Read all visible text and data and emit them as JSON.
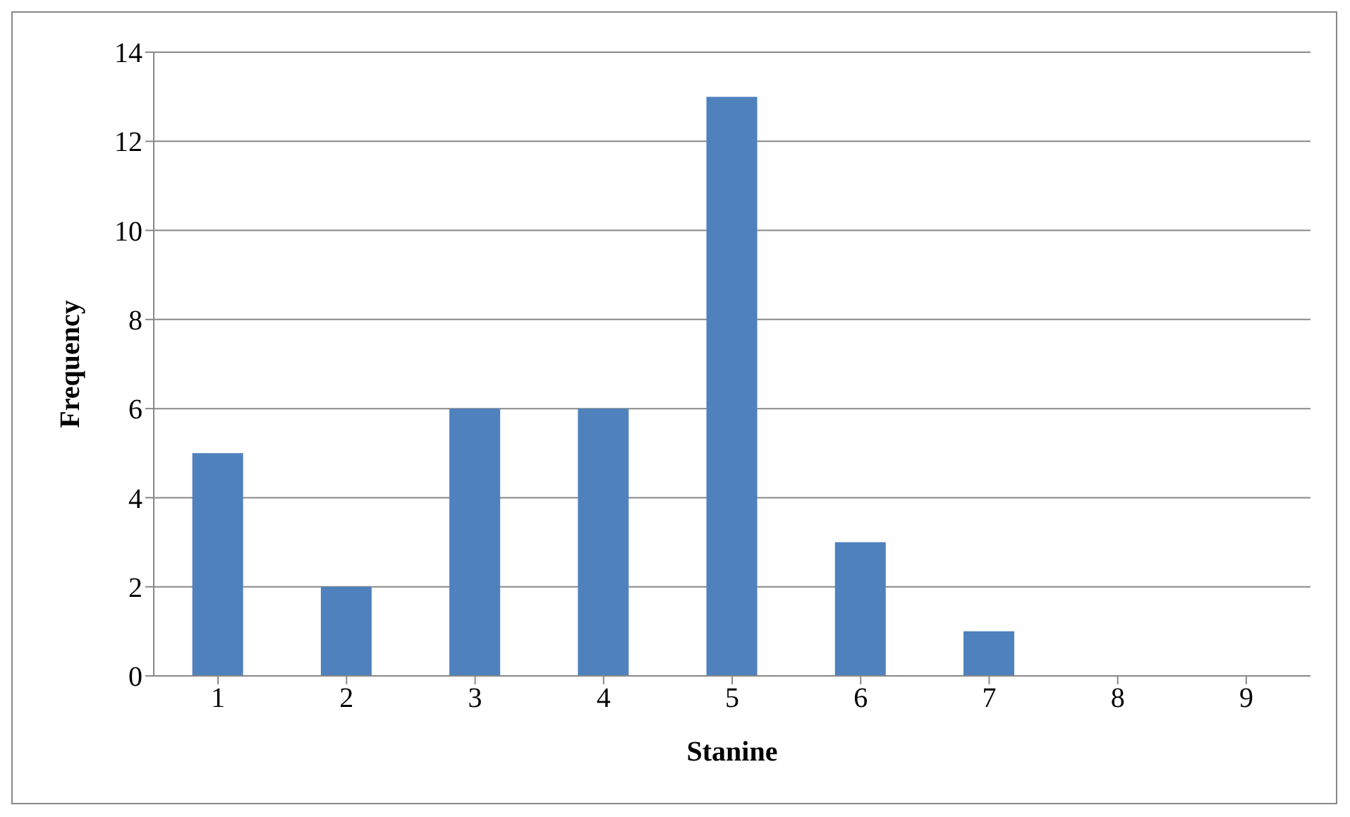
{
  "chart_data": {
    "type": "bar",
    "xlabel": "Stanine",
    "ylabel": "Frequency",
    "categories": [
      "1",
      "2",
      "3",
      "4",
      "5",
      "6",
      "7",
      "8",
      "9"
    ],
    "values": [
      5,
      2,
      6,
      6,
      13,
      3,
      1,
      0,
      0
    ],
    "color": "#4f81bd",
    "ylim": [
      0,
      14
    ],
    "yticks": [
      0,
      2,
      4,
      6,
      8,
      10,
      12,
      14
    ],
    "grid": "y"
  }
}
